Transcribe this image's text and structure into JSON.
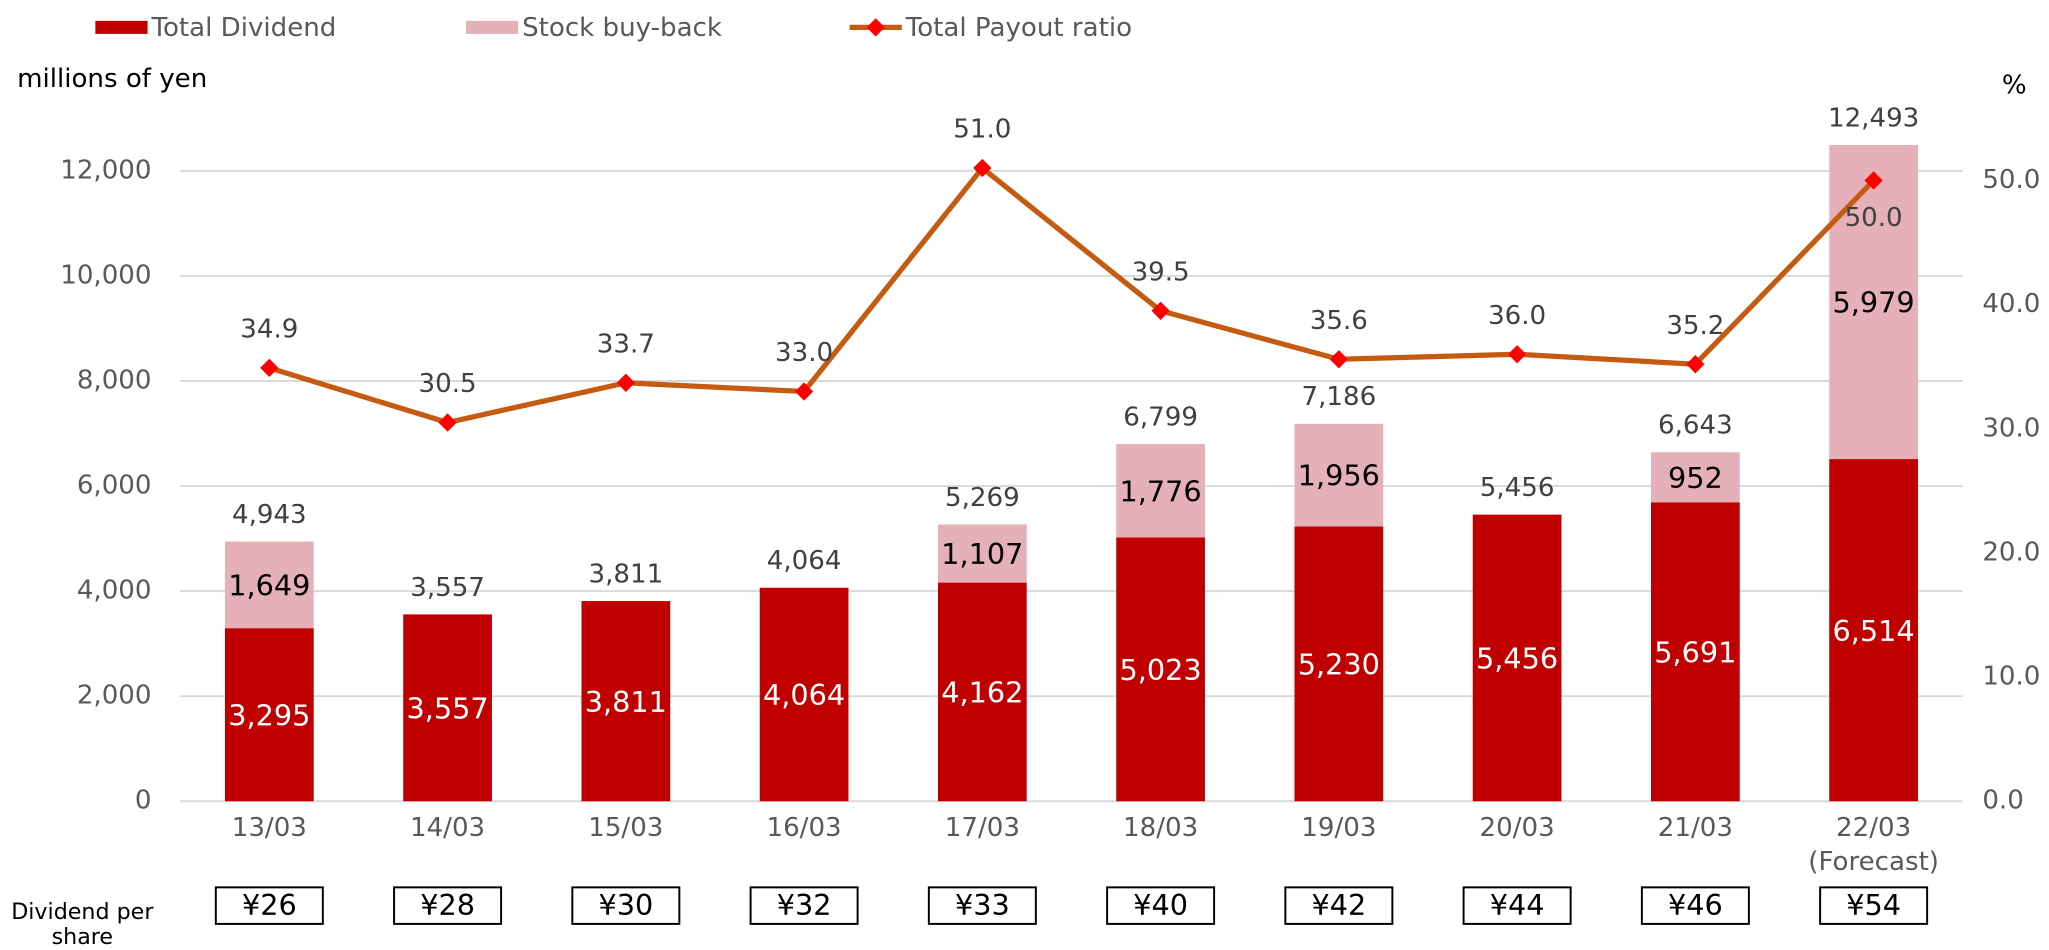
{
  "chart_data": {
    "type": "bar-line",
    "y_label": "millions of yen",
    "y2_label": "%",
    "categories": [
      "13/03",
      "14/03",
      "15/03",
      "16/03",
      "17/03",
      "18/03",
      "19/03",
      "20/03",
      "21/03",
      "22/03"
    ],
    "forecast_note": "(Forecast)",
    "series": [
      {
        "name": "Total Dividend",
        "color": "#c00000",
        "values": [
          3295,
          3557,
          3811,
          4064,
          4162,
          5023,
          5230,
          5456,
          5691,
          6514
        ],
        "value_labels": [
          "3,295",
          "3,557",
          "3,811",
          "4,064",
          "4,162",
          "5,023",
          "5,230",
          "5,456",
          "5,691",
          "6,514"
        ]
      },
      {
        "name": "Stock buy-back",
        "color": "#e6b0b8",
        "values": [
          1649,
          null,
          null,
          null,
          1107,
          1776,
          1956,
          null,
          952,
          5979
        ],
        "value_labels": [
          "1,649",
          null,
          null,
          null,
          "1,107",
          "1,776",
          "1,956",
          null,
          "952",
          "5,979"
        ]
      },
      {
        "name": "Total Payout ratio",
        "color": "#c55a11",
        "marker_color": "#ff0000",
        "axis": "y2",
        "type": "line",
        "values": [
          34.9,
          30.5,
          33.7,
          33.0,
          51.0,
          39.5,
          35.6,
          36.0,
          35.2,
          50.0
        ],
        "value_labels": [
          "34.9",
          "30.5",
          "33.7",
          "33.0",
          "51.0",
          "39.5",
          "35.6",
          "36.0",
          "35.2",
          "50.0"
        ]
      }
    ],
    "total_labels": [
      "4,943",
      "3,557",
      "3,811",
      "4,064",
      "5,269",
      "6,799",
      "7,186",
      "5,456",
      "6,643",
      "12,493"
    ],
    "dividend_per_share_label": "Dividend per share",
    "dividend_per_share": [
      "¥26",
      "¥28",
      "¥30",
      "¥32",
      "¥33",
      "¥40",
      "¥42",
      "¥44",
      "¥46",
      "¥54"
    ],
    "ylim": [
      0,
      13000
    ],
    "yticks": [
      0,
      {
        "value": 2000,
        "label": "2,000"
      },
      {
        "value": 4000,
        "label": "4,000"
      },
      {
        "value": 6000,
        "label": "6,000"
      },
      {
        "value": 8000,
        "label": "8,000"
      },
      {
        "value": 10000,
        "label": "10,000"
      },
      {
        "value": 12000,
        "label": "12,000"
      }
    ],
    "y2lim": [
      0,
      55
    ],
    "y2ticks": [
      {
        "value": 0,
        "label": "0.0"
      },
      {
        "value": 10,
        "label": "10.0"
      },
      {
        "value": 20,
        "label": "20.0"
      },
      {
        "value": 30,
        "label": "30.0"
      },
      {
        "value": 40,
        "label": "40.0"
      },
      {
        "value": 50,
        "label": "50.0"
      }
    ],
    "grid": true,
    "legend": "top"
  }
}
